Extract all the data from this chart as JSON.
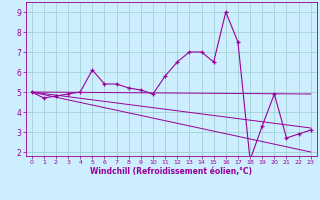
{
  "title": "",
  "xlabel": "Windchill (Refroidissement éolien,°C)",
  "bg_color": "#cceeff",
  "line_color": "#990099",
  "grid_color": "#99cccc",
  "xlim": [
    -0.5,
    23.5
  ],
  "ylim": [
    1.8,
    9.5
  ],
  "yticks": [
    2,
    3,
    4,
    5,
    6,
    7,
    8,
    9
  ],
  "xticks": [
    0,
    1,
    2,
    3,
    4,
    5,
    6,
    7,
    8,
    9,
    10,
    11,
    12,
    13,
    14,
    15,
    16,
    17,
    18,
    19,
    20,
    21,
    22,
    23
  ],
  "main_x": [
    0,
    1,
    2,
    3,
    4,
    5,
    6,
    7,
    8,
    9,
    10,
    11,
    12,
    13,
    14,
    15,
    16,
    17,
    18,
    19,
    20,
    21,
    22,
    23
  ],
  "main_y": [
    5.0,
    4.7,
    4.8,
    4.9,
    5.0,
    6.1,
    5.4,
    5.4,
    5.2,
    5.1,
    4.9,
    5.8,
    6.5,
    7.0,
    7.0,
    6.5,
    9.0,
    7.5,
    1.6,
    3.3,
    4.9,
    2.7,
    2.9,
    3.1
  ],
  "trend1_x": [
    0,
    23
  ],
  "trend1_y": [
    5.0,
    4.9
  ],
  "trend2_x": [
    0,
    23
  ],
  "trend2_y": [
    5.0,
    3.2
  ],
  "trend3_x": [
    0,
    23
  ],
  "trend3_y": [
    5.0,
    2.0
  ]
}
